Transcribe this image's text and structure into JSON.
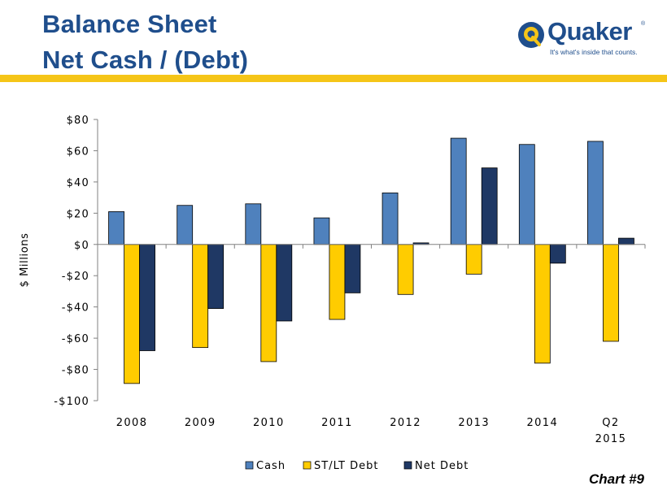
{
  "header": {
    "title_line1": "Balance Sheet",
    "title_line2": "Net Cash / (Debt)"
  },
  "logo": {
    "name": "Quaker",
    "tagline": "It's what's inside that counts.",
    "registered": "®",
    "icon": "quaker-q-icon"
  },
  "colors": {
    "title": "#1f4e8c",
    "accent_rule": "#f5c518",
    "cash": "#4f81bd",
    "debt": "#ffcc00",
    "net_debt": "#1f3864"
  },
  "chart_number": "Chart #9",
  "chart_data": {
    "type": "bar",
    "title": "",
    "ylabel": "$ Millions",
    "xlabel": "",
    "ylim": [
      -100,
      80
    ],
    "yticks": [
      80,
      60,
      40,
      20,
      0,
      -20,
      -40,
      -60,
      -80,
      -100
    ],
    "ytick_labels": [
      "$80",
      "$60",
      "$40",
      "$20",
      "$0",
      "-$20",
      "-$40",
      "-$60",
      "-$80",
      "-$100"
    ],
    "categories": [
      [
        "2008"
      ],
      [
        "2009"
      ],
      [
        "2010"
      ],
      [
        "2011"
      ],
      [
        "2012"
      ],
      [
        "2013"
      ],
      [
        "2014"
      ],
      [
        "Q2",
        "2015"
      ]
    ],
    "legend_position": "bottom",
    "grid": false,
    "series": [
      {
        "name": "Cash",
        "color": "#4f81bd",
        "values": [
          21,
          25,
          26,
          17,
          33,
          68,
          64,
          66
        ]
      },
      {
        "name": "ST/LT Debt",
        "color": "#ffcc00",
        "values": [
          -89,
          -66,
          -75,
          -48,
          -32,
          -19,
          -76,
          -62
        ]
      },
      {
        "name": "Net Debt",
        "color": "#1f3864",
        "values": [
          -68,
          -41,
          -49,
          -31,
          1,
          49,
          -12,
          4
        ]
      }
    ]
  }
}
